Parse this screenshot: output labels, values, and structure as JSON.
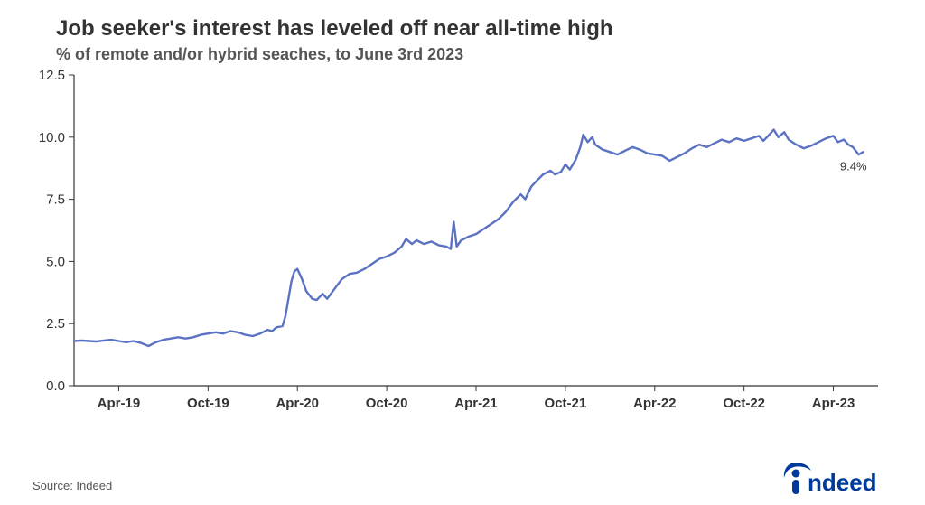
{
  "title": "Job seeker's interest has leveled off near all-time high",
  "subtitle": "% of remote and/or hybrid seaches, to June 3rd 2023",
  "source": "Source: Indeed",
  "logo": {
    "name": "indeed",
    "color": "#003a9b"
  },
  "chart": {
    "type": "line",
    "background_color": "#ffffff",
    "line_color": "#5b72c3",
    "line_width": 2.4,
    "axis_color": "#333333",
    "tick_color": "#333333",
    "tick_fontsize": 15,
    "title_fontsize": 24,
    "subtitle_fontsize": 18,
    "source_fontsize": 13,
    "grid": false,
    "y": {
      "min": 0.0,
      "max": 12.5,
      "step": 2.5,
      "ticks": [
        0.0,
        2.5,
        5.0,
        7.5,
        10.0,
        12.5
      ],
      "tick_labels": [
        "0.0",
        "2.5",
        "5.0",
        "7.5",
        "10.0",
        "12.5"
      ]
    },
    "x": {
      "min": 0,
      "max": 54,
      "ticks": [
        3,
        9,
        15,
        21,
        27,
        33,
        39,
        45,
        51
      ],
      "tick_labels": [
        "Apr-19",
        "Oct-19",
        "Apr-20",
        "Oct-20",
        "Apr-21",
        "Oct-21",
        "Apr-22",
        "Oct-22",
        "Apr-23"
      ]
    },
    "end_label": "9.4%",
    "end_label_color": "#333333",
    "end_label_fontsize": 13,
    "series": [
      {
        "x": 0.0,
        "y": 1.8
      },
      {
        "x": 0.5,
        "y": 1.82
      },
      {
        "x": 1.0,
        "y": 1.8
      },
      {
        "x": 1.5,
        "y": 1.78
      },
      {
        "x": 2.0,
        "y": 1.82
      },
      {
        "x": 2.5,
        "y": 1.85
      },
      {
        "x": 3.0,
        "y": 1.8
      },
      {
        "x": 3.5,
        "y": 1.75
      },
      {
        "x": 4.0,
        "y": 1.8
      },
      {
        "x": 4.5,
        "y": 1.72
      },
      {
        "x": 5.0,
        "y": 1.6
      },
      {
        "x": 5.5,
        "y": 1.75
      },
      {
        "x": 6.0,
        "y": 1.85
      },
      {
        "x": 6.5,
        "y": 1.9
      },
      {
        "x": 7.0,
        "y": 1.95
      },
      {
        "x": 7.5,
        "y": 1.9
      },
      {
        "x": 8.0,
        "y": 1.95
      },
      {
        "x": 8.5,
        "y": 2.05
      },
      {
        "x": 9.0,
        "y": 2.1
      },
      {
        "x": 9.5,
        "y": 2.15
      },
      {
        "x": 10.0,
        "y": 2.1
      },
      {
        "x": 10.5,
        "y": 2.2
      },
      {
        "x": 11.0,
        "y": 2.15
      },
      {
        "x": 11.5,
        "y": 2.05
      },
      {
        "x": 12.0,
        "y": 2.0
      },
      {
        "x": 12.5,
        "y": 2.1
      },
      {
        "x": 13.0,
        "y": 2.25
      },
      {
        "x": 13.3,
        "y": 2.2
      },
      {
        "x": 13.6,
        "y": 2.35
      },
      {
        "x": 14.0,
        "y": 2.4
      },
      {
        "x": 14.2,
        "y": 2.8
      },
      {
        "x": 14.4,
        "y": 3.5
      },
      {
        "x": 14.6,
        "y": 4.2
      },
      {
        "x": 14.8,
        "y": 4.6
      },
      {
        "x": 15.0,
        "y": 4.7
      },
      {
        "x": 15.3,
        "y": 4.3
      },
      {
        "x": 15.6,
        "y": 3.8
      },
      {
        "x": 16.0,
        "y": 3.5
      },
      {
        "x": 16.3,
        "y": 3.45
      },
      {
        "x": 16.7,
        "y": 3.7
      },
      {
        "x": 17.0,
        "y": 3.5
      },
      {
        "x": 17.5,
        "y": 3.9
      },
      {
        "x": 18.0,
        "y": 4.3
      },
      {
        "x": 18.5,
        "y": 4.5
      },
      {
        "x": 19.0,
        "y": 4.55
      },
      {
        "x": 19.5,
        "y": 4.7
      },
      {
        "x": 20.0,
        "y": 4.9
      },
      {
        "x": 20.5,
        "y": 5.1
      },
      {
        "x": 21.0,
        "y": 5.2
      },
      {
        "x": 21.5,
        "y": 5.35
      },
      {
        "x": 22.0,
        "y": 5.6
      },
      {
        "x": 22.3,
        "y": 5.9
      },
      {
        "x": 22.7,
        "y": 5.7
      },
      {
        "x": 23.0,
        "y": 5.85
      },
      {
        "x": 23.5,
        "y": 5.7
      },
      {
        "x": 24.0,
        "y": 5.8
      },
      {
        "x": 24.5,
        "y": 5.65
      },
      {
        "x": 25.0,
        "y": 5.6
      },
      {
        "x": 25.3,
        "y": 5.5
      },
      {
        "x": 25.5,
        "y": 6.6
      },
      {
        "x": 25.7,
        "y": 5.6
      },
      {
        "x": 26.0,
        "y": 5.85
      },
      {
        "x": 26.5,
        "y": 6.0
      },
      {
        "x": 27.0,
        "y": 6.1
      },
      {
        "x": 27.5,
        "y": 6.3
      },
      {
        "x": 28.0,
        "y": 6.5
      },
      {
        "x": 28.5,
        "y": 6.7
      },
      {
        "x": 29.0,
        "y": 7.0
      },
      {
        "x": 29.5,
        "y": 7.4
      },
      {
        "x": 30.0,
        "y": 7.7
      },
      {
        "x": 30.3,
        "y": 7.5
      },
      {
        "x": 30.7,
        "y": 8.0
      },
      {
        "x": 31.0,
        "y": 8.2
      },
      {
        "x": 31.5,
        "y": 8.5
      },
      {
        "x": 32.0,
        "y": 8.65
      },
      {
        "x": 32.3,
        "y": 8.5
      },
      {
        "x": 32.7,
        "y": 8.6
      },
      {
        "x": 33.0,
        "y": 8.9
      },
      {
        "x": 33.3,
        "y": 8.7
      },
      {
        "x": 33.7,
        "y": 9.1
      },
      {
        "x": 34.0,
        "y": 9.6
      },
      {
        "x": 34.2,
        "y": 10.1
      },
      {
        "x": 34.5,
        "y": 9.8
      },
      {
        "x": 34.8,
        "y": 10.0
      },
      {
        "x": 35.0,
        "y": 9.7
      },
      {
        "x": 35.5,
        "y": 9.5
      },
      {
        "x": 36.0,
        "y": 9.4
      },
      {
        "x": 36.5,
        "y": 9.3
      },
      {
        "x": 37.0,
        "y": 9.45
      },
      {
        "x": 37.5,
        "y": 9.6
      },
      {
        "x": 38.0,
        "y": 9.5
      },
      {
        "x": 38.5,
        "y": 9.35
      },
      {
        "x": 39.0,
        "y": 9.3
      },
      {
        "x": 39.5,
        "y": 9.25
      },
      {
        "x": 40.0,
        "y": 9.05
      },
      {
        "x": 40.5,
        "y": 9.2
      },
      {
        "x": 41.0,
        "y": 9.35
      },
      {
        "x": 41.5,
        "y": 9.55
      },
      {
        "x": 42.0,
        "y": 9.7
      },
      {
        "x": 42.5,
        "y": 9.6
      },
      {
        "x": 43.0,
        "y": 9.75
      },
      {
        "x": 43.5,
        "y": 9.9
      },
      {
        "x": 44.0,
        "y": 9.8
      },
      {
        "x": 44.5,
        "y": 9.95
      },
      {
        "x": 45.0,
        "y": 9.85
      },
      {
        "x": 45.5,
        "y": 9.95
      },
      {
        "x": 46.0,
        "y": 10.05
      },
      {
        "x": 46.3,
        "y": 9.85
      },
      {
        "x": 46.7,
        "y": 10.1
      },
      {
        "x": 47.0,
        "y": 10.3
      },
      {
        "x": 47.3,
        "y": 10.0
      },
      {
        "x": 47.7,
        "y": 10.2
      },
      {
        "x": 48.0,
        "y": 9.9
      },
      {
        "x": 48.5,
        "y": 9.7
      },
      {
        "x": 49.0,
        "y": 9.55
      },
      {
        "x": 49.5,
        "y": 9.65
      },
      {
        "x": 50.0,
        "y": 9.8
      },
      {
        "x": 50.5,
        "y": 9.95
      },
      {
        "x": 51.0,
        "y": 10.05
      },
      {
        "x": 51.3,
        "y": 9.8
      },
      {
        "x": 51.7,
        "y": 9.9
      },
      {
        "x": 52.0,
        "y": 9.7
      },
      {
        "x": 52.3,
        "y": 9.6
      },
      {
        "x": 52.7,
        "y": 9.3
      },
      {
        "x": 53.0,
        "y": 9.4
      }
    ]
  }
}
